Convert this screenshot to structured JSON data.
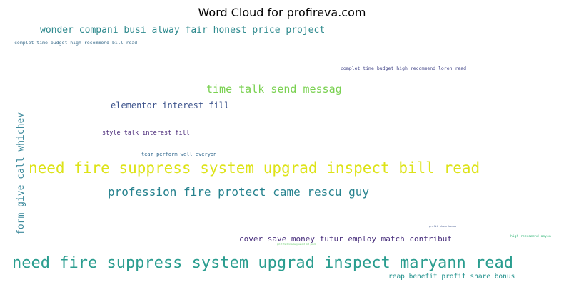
{
  "chart_data": {
    "type": "wordcloud",
    "title": "Word Cloud for profireva.com",
    "background": "#ffffff",
    "words": [
      {
        "text": "need fire suppress system upgrad inspect maryann read",
        "weight": 1.0,
        "color": "#2a9d8f"
      },
      {
        "text": "need fire suppress system upgrad inspect bill read",
        "weight": 0.98,
        "color": "#dde318"
      },
      {
        "text": "profession fire protect came rescu guy",
        "weight": 0.78,
        "color": "#26828e"
      },
      {
        "text": "time talk send messag",
        "weight": 0.72,
        "color": "#7ad151"
      },
      {
        "text": "form give call whichev",
        "weight": 0.62,
        "color": "#3e8a9c"
      },
      {
        "text": "wonder compani busi alway fair honest price project",
        "weight": 0.62,
        "color": "#2f8a8e"
      },
      {
        "text": "elementor interest fill",
        "weight": 0.55,
        "color": "#3b528b"
      },
      {
        "text": "cover save money futur employ match contribut",
        "weight": 0.5,
        "color": "#472d7b"
      },
      {
        "text": "reap benefit profit share bonus",
        "weight": 0.45,
        "color": "#21918c"
      },
      {
        "text": "style talk interest fill",
        "weight": 0.4,
        "color": "#482878"
      },
      {
        "text": "team perform well everyon",
        "weight": 0.33,
        "color": "#31688e"
      },
      {
        "text": "complet time budget high recommend bill read",
        "weight": 0.3,
        "color": "#3a6b8a"
      },
      {
        "text": "complet time budget high recommend loren read",
        "weight": 0.3,
        "color": "#414487"
      },
      {
        "text": "high recommend anyon",
        "weight": 0.22,
        "color": "#35b779"
      },
      {
        "text": "profit share bonus",
        "weight": 0.15,
        "color": "#3b528b"
      },
      {
        "text": "polit fast knowledg assist lot patch",
        "weight": 0.1,
        "color": "#5ec962"
      }
    ]
  }
}
